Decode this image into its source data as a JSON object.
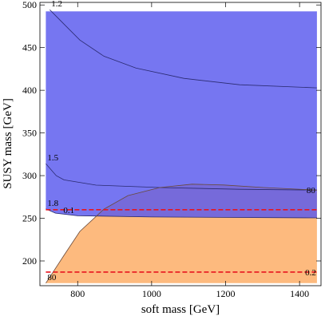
{
  "chart_data": {
    "type": "region",
    "x_label": "soft mass [GeV]",
    "y_label": "SUSY mass [GeV]",
    "xlim": [
      698,
      1458
    ],
    "ylim": [
      171,
      503
    ],
    "xticks": [
      800,
      1000,
      1200,
      1400
    ],
    "yticks": [
      200,
      250,
      300,
      350,
      400,
      450,
      500
    ],
    "regions": [
      {
        "color": "#fdba7e",
        "opacity": 1,
        "x": [
          714,
          763,
          806,
          871,
          936,
          1022,
          1109,
          1195,
          1303,
          1447,
          1447,
          714
        ],
        "y": [
          174,
          206.5,
          234.6,
          260.7,
          276.6,
          286,
          290,
          289,
          286,
          283,
          174,
          174
        ]
      },
      {
        "color": "#5858ee",
        "opacity": 0.82,
        "x": [
          714,
          1447,
          1447,
          1200,
          1000,
          800,
          740,
          714
        ],
        "y": [
          492.5,
          492.5,
          250.5,
          251,
          251.5,
          253,
          256,
          261
        ]
      }
    ],
    "contours": [
      {
        "labels": [
          "1.2"
        ],
        "color": "#2a2a70",
        "x": [
          724.5,
          763,
          806,
          871,
          957.5,
          1087,
          1238,
          1447
        ],
        "y": [
          494.4,
          477.6,
          458.9,
          440,
          426,
          414,
          406.5,
          402.8
        ]
      },
      {
        "labels": [
          "1.5"
        ],
        "color": "#2a2a70",
        "x": [
          714,
          742,
          763,
          850,
          1022,
          1238,
          1447
        ],
        "y": [
          314,
          300,
          295,
          288.8,
          286,
          284,
          283
        ]
      },
      {
        "labels": [
          "1.8"
        ],
        "color": "#2a2a70",
        "x": [
          714,
          740,
          800,
          1000,
          1447
        ],
        "y": [
          261,
          256,
          253,
          251.5,
          250.5
        ]
      },
      {
        "labels": [
          "80",
          "80"
        ],
        "color": "#6a4a3a",
        "x": [
          714,
          763,
          806,
          871,
          936,
          1022,
          1109,
          1195,
          1303,
          1447
        ],
        "y": [
          174,
          206.5,
          234.6,
          260.7,
          276.6,
          286,
          290,
          289,
          286,
          283
        ]
      }
    ],
    "hlines": [
      {
        "label": "0.1",
        "y": 260,
        "x": [
          714,
          1447
        ],
        "color": "#e8141e"
      },
      {
        "label": "0.2",
        "y": 187,
        "x": [
          714,
          1447
        ],
        "color": "#e8141e"
      }
    ]
  }
}
